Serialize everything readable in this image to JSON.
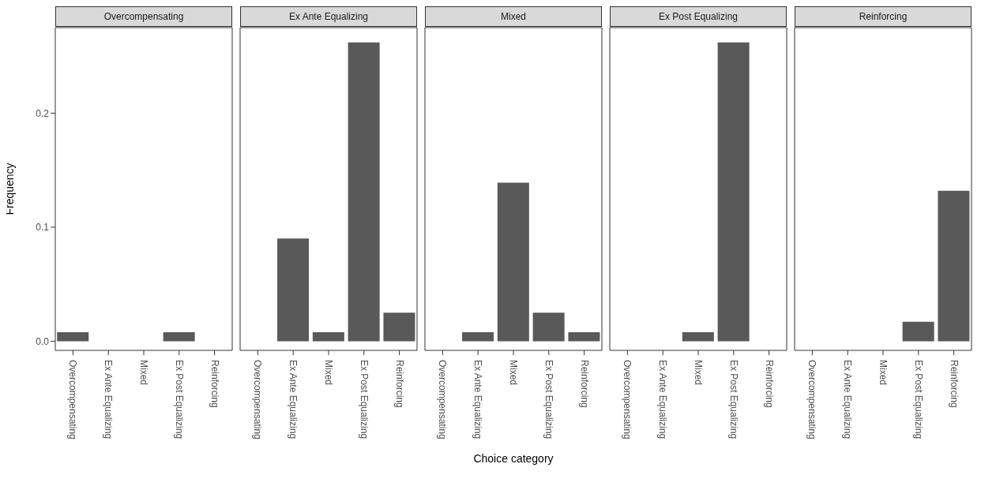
{
  "chart_data": [
    {
      "type": "bar",
      "title": "Overcompensating",
      "ylabel": "Frequency",
      "categories": [
        "Overcompensating",
        "Ex Ante Equalizing",
        "Mixed",
        "Ex Post Equalizing",
        "Reinforcing"
      ],
      "values": [
        0.008,
        0,
        0,
        0.008,
        0
      ],
      "color": "#595959",
      "ylim": [
        -0.008,
        0.275
      ],
      "yticks": [
        {
          "value": 0,
          "label": "0.0"
        },
        {
          "value": 0.1,
          "label": "0.1"
        },
        {
          "value": 0.2,
          "label": "0.2"
        }
      ],
      "grid": false
    },
    {
      "type": "bar",
      "title": "Ex Ante Equalizing",
      "categories": [
        "Overcompensating",
        "Ex Ante Equalizing",
        "Mixed",
        "Ex Post Equalizing",
        "Reinforcing"
      ],
      "values": [
        0,
        0.09,
        0.008,
        0.262,
        0.025
      ],
      "color": "#595959",
      "ylim": [
        -0.008,
        0.275
      ],
      "grid": false,
      "tick_labels": "x"
    },
    {
      "type": "bar",
      "title": "Mixed",
      "xlabel": "Choice category",
      "categories": [
        "Overcompensating",
        "Ex Ante Equalizing",
        "Mixed",
        "Ex Post Equalizing",
        "Reinforcing"
      ],
      "values": [
        0,
        0.008,
        0.139,
        0.025,
        0.008
      ],
      "color": "#595959",
      "ylim": [
        -0.008,
        0.275
      ],
      "grid": false,
      "tick_labels": "x"
    },
    {
      "type": "bar",
      "title": "Ex Post Equalizing",
      "categories": [
        "Overcompensating",
        "Ex Ante Equalizing",
        "Mixed",
        "Ex Post Equalizing",
        "Reinforcing"
      ],
      "values": [
        0,
        0,
        0.008,
        0.262,
        0
      ],
      "color": "#595959",
      "ylim": [
        -0.008,
        0.275
      ],
      "grid": false,
      "tick_labels": "x"
    },
    {
      "type": "bar",
      "title": "Reinforcing",
      "categories": [
        "Overcompensating",
        "Ex Ante Equalizing",
        "Mixed",
        "Ex Post Equalizing",
        "Reinforcing"
      ],
      "values": [
        0,
        0,
        0,
        0.017,
        0.132
      ],
      "color": "#595959",
      "ylim": [
        -0.008,
        0.275
      ],
      "grid": false,
      "tick_labels": "x"
    }
  ]
}
